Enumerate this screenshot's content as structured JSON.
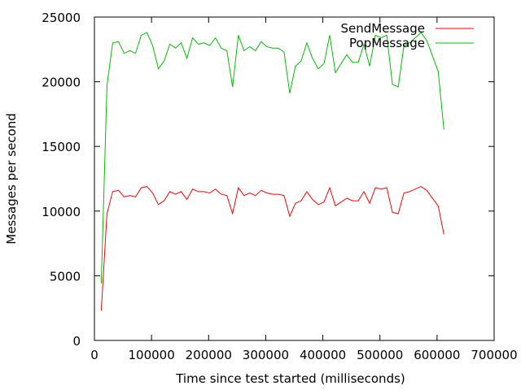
{
  "chart_data": {
    "type": "line",
    "title": "",
    "xlabel": "Time since test started (milliseconds)",
    "ylabel": "Messages per second",
    "xlim": [
      0,
      700000
    ],
    "ylim": [
      0,
      25000
    ],
    "xticks": [
      0,
      100000,
      200000,
      300000,
      400000,
      500000,
      600000,
      700000
    ],
    "yticks": [
      0,
      5000,
      10000,
      15000,
      20000,
      25000
    ],
    "grid": false,
    "legend_position": "top-right",
    "series": [
      {
        "name": "SendMessage",
        "color": "#ff0000",
        "x": [
          12000,
          22000,
          32000,
          42000,
          52000,
          62000,
          72000,
          82000,
          92000,
          102000,
          112000,
          122000,
          132000,
          142000,
          152000,
          162000,
          172000,
          182000,
          192000,
          202000,
          212000,
          222000,
          232000,
          242000,
          252000,
          262000,
          272000,
          282000,
          292000,
          302000,
          312000,
          322000,
          332000,
          342000,
          352000,
          362000,
          372000,
          382000,
          392000,
          402000,
          412000,
          422000,
          432000,
          442000,
          452000,
          462000,
          472000,
          482000,
          492000,
          502000,
          512000,
          522000,
          532000,
          542000,
          552000,
          562000,
          572000,
          582000,
          592000,
          602000,
          612000
        ],
        "y": [
          2300,
          9800,
          11500,
          11600,
          11100,
          11200,
          11100,
          11800,
          11900,
          11400,
          10500,
          10800,
          11500,
          11300,
          11500,
          10900,
          11700,
          11500,
          11500,
          11400,
          11700,
          11300,
          11200,
          9800,
          11800,
          11200,
          11400,
          11200,
          11600,
          11400,
          11300,
          11300,
          11200,
          9600,
          10600,
          10800,
          11500,
          10900,
          10500,
          10700,
          11800,
          10400,
          10700,
          11000,
          10800,
          10800,
          11500,
          10600,
          11800,
          11700,
          11800,
          9900,
          9800,
          11400,
          11500,
          11700,
          11900,
          11600,
          11000,
          10400,
          8200
        ]
      },
      {
        "name": "PopMessage",
        "color": "#00c000",
        "x": [
          12000,
          22000,
          32000,
          42000,
          52000,
          62000,
          72000,
          82000,
          92000,
          102000,
          112000,
          122000,
          132000,
          142000,
          152000,
          162000,
          172000,
          182000,
          192000,
          202000,
          212000,
          222000,
          232000,
          242000,
          252000,
          262000,
          272000,
          282000,
          292000,
          302000,
          312000,
          322000,
          332000,
          342000,
          352000,
          362000,
          372000,
          382000,
          392000,
          402000,
          412000,
          422000,
          432000,
          442000,
          452000,
          462000,
          472000,
          482000,
          492000,
          502000,
          512000,
          522000,
          532000,
          542000,
          552000,
          562000,
          572000,
          582000,
          592000,
          602000,
          612000
        ],
        "y": [
          4400,
          19700,
          23000,
          23100,
          22200,
          22400,
          22200,
          23600,
          23800,
          22800,
          21000,
          21600,
          22900,
          22600,
          23000,
          21800,
          23400,
          22900,
          23000,
          22800,
          23400,
          22600,
          22400,
          19600,
          23600,
          22400,
          22700,
          22400,
          23100,
          22700,
          22600,
          22600,
          22300,
          19100,
          21200,
          21600,
          23000,
          21800,
          21000,
          21400,
          23600,
          20700,
          21400,
          22100,
          21500,
          21500,
          22900,
          21200,
          23600,
          23400,
          23600,
          19800,
          19600,
          22800,
          23000,
          23400,
          23800,
          23200,
          22000,
          20800,
          16300
        ]
      }
    ]
  }
}
